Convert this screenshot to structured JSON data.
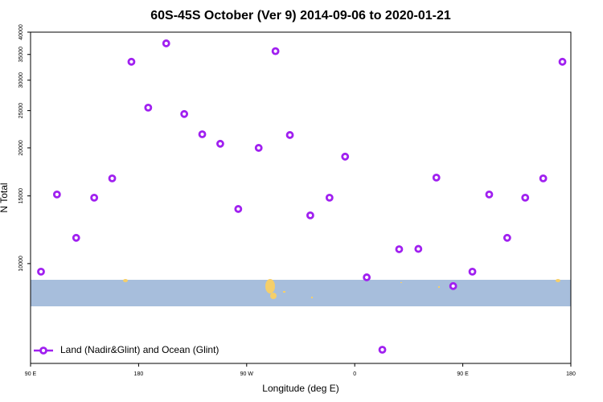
{
  "chart_data": {
    "type": "scatter",
    "title": "60S-45S October (Ver 9)   2014-09-06 to 2020-01-21",
    "xlabel": "Longitude (deg E)",
    "ylabel": "N Total",
    "log_y": true,
    "xlim": [
      90,
      540
    ],
    "xticks": [
      {
        "value": 90,
        "label": "90 E"
      },
      180,
      {
        "value": 270,
        "label": "90 W"
      },
      {
        "value": 360,
        "label": "0"
      },
      {
        "value": 450,
        "label": "90 E"
      },
      {
        "value": 540,
        "label": "180"
      }
    ],
    "ylim": [
      5500,
      40000
    ],
    "yticks": [
      10000,
      15000,
      20000,
      25000,
      30000,
      35000,
      40000
    ],
    "legend_position": "bottom-left",
    "series": [
      {
        "name": "Land (Nadir&Glint) and Ocean (Glint)",
        "color": "#a020f0",
        "x": [
          98.7,
          112,
          128,
          143,
          158,
          174,
          188,
          203,
          218,
          233,
          248,
          263,
          280,
          294,
          306,
          323,
          339,
          352,
          370,
          383,
          397,
          413,
          428,
          442,
          458,
          472,
          487,
          502,
          517,
          533
        ],
        "values": [
          9530,
          15130,
          11670,
          14840,
          16660,
          33500,
          25450,
          37400,
          24500,
          21700,
          20500,
          13870,
          20000,
          35700,
          21600,
          13350,
          14840,
          18980,
          9210,
          5970,
          10900,
          10920,
          16740,
          8740,
          9530,
          15130,
          11670,
          14840,
          16660,
          33500
        ]
      }
    ]
  }
}
